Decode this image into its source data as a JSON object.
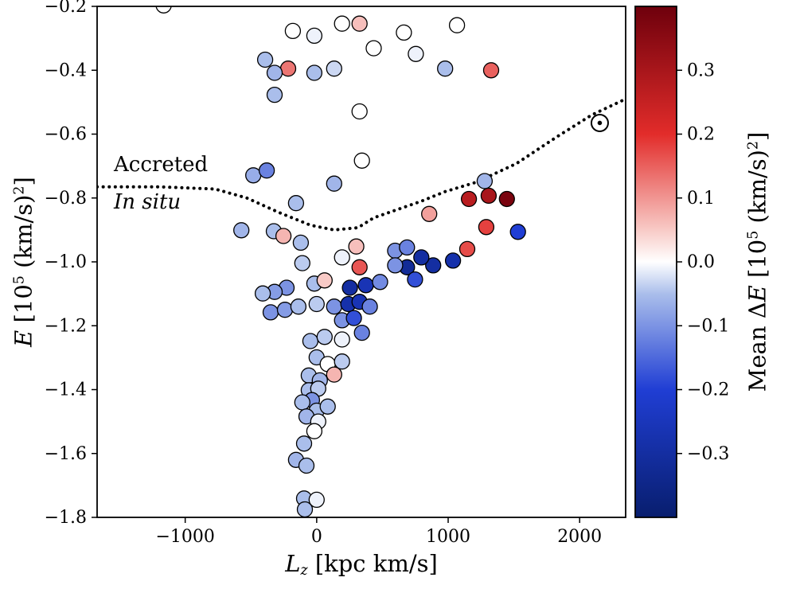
{
  "chart_data": {
    "type": "scatter",
    "annotations": {
      "accreted": "Accreted",
      "in_situ": "In situ"
    },
    "xlabel_plain": "L_z [kpc km/s]",
    "ylabel_plain": "E [10^5 (km/s)^2]",
    "xlabel_parts": [
      {
        "t": "L",
        "style": "italic"
      },
      {
        "t": "z",
        "style": "italic",
        "sub": true
      },
      {
        "t": " [kpc km/s]"
      }
    ],
    "ylabel_parts": [
      {
        "t": "E",
        "style": "italic"
      },
      {
        "t": " [10"
      },
      {
        "t": "5",
        "sup": true
      },
      {
        "t": " (km/s)"
      },
      {
        "t": "2",
        "sup": true
      },
      {
        "t": "]"
      }
    ],
    "xlim": [
      -1670,
      2350
    ],
    "ylim": [
      -1.8,
      -0.2
    ],
    "xticks": [
      -1000,
      0,
      1000,
      2000
    ],
    "yticks": [
      -0.2,
      -0.4,
      -0.6,
      -0.8,
      -1.0,
      -1.2,
      -1.4,
      -1.6,
      -1.8
    ],
    "grid": false,
    "colorbar": {
      "label_plain": "Mean ΔE [10^5 (km/s)^2]",
      "label_parts": [
        {
          "t": "Mean Δ"
        },
        {
          "t": "E",
          "style": "italic"
        },
        {
          "t": " [10"
        },
        {
          "t": "5",
          "sup": true
        },
        {
          "t": " (km/s)"
        },
        {
          "t": "2",
          "sup": true
        },
        {
          "t": "]"
        }
      ],
      "range": [
        -0.4,
        0.4
      ],
      "ticks": [
        0.3,
        0.2,
        0.1,
        0.0,
        -0.1,
        -0.2,
        -0.3
      ],
      "colormap_stops": [
        {
          "v": -0.4,
          "color": "#081e6e"
        },
        {
          "v": -0.2,
          "color": "#203ed4"
        },
        {
          "v": -0.05,
          "color": "#aabeeb"
        },
        {
          "v": 0.0,
          "color": "#ffffff"
        },
        {
          "v": 0.05,
          "color": "#f8cac6"
        },
        {
          "v": 0.2,
          "color": "#e22c2a"
        },
        {
          "v": 0.4,
          "color": "#6e000c"
        }
      ]
    },
    "boundary_line": {
      "style": "dotted",
      "x": [
        -1670,
        -1200,
        -772,
        -531,
        -289,
        -48,
        133,
        314,
        434,
        615,
        796,
        977,
        1218,
        1520,
        1821,
        2092,
        2350
      ],
      "y": [
        -0.765,
        -0.765,
        -0.772,
        -0.8,
        -0.845,
        -0.885,
        -0.9,
        -0.893,
        -0.862,
        -0.836,
        -0.81,
        -0.78,
        -0.75,
        -0.692,
        -0.61,
        -0.54,
        -0.49
      ]
    },
    "sun_marker": {
      "x": 2153,
      "y": -0.565
    },
    "points": [
      [
        -1164,
        -0.197,
        0.0
      ],
      [
        -181,
        -0.277,
        0.0
      ],
      [
        -18,
        -0.292,
        -0.01
      ],
      [
        193,
        -0.254,
        0.0
      ],
      [
        326,
        -0.254,
        0.06
      ],
      [
        434,
        -0.331,
        0.0
      ],
      [
        663,
        -0.282,
        0.0
      ],
      [
        754,
        -0.349,
        -0.01
      ],
      [
        1067,
        -0.259,
        0.0
      ],
      [
        -392,
        -0.367,
        -0.05
      ],
      [
        -217,
        -0.395,
        0.13
      ],
      [
        -320,
        -0.408,
        -0.06
      ],
      [
        -18,
        -0.408,
        -0.05
      ],
      [
        133,
        -0.395,
        -0.03
      ],
      [
        977,
        -0.395,
        -0.05
      ],
      [
        1327,
        -0.4,
        0.15
      ],
      [
        -320,
        -0.477,
        -0.05
      ],
      [
        326,
        -0.529,
        0.0
      ],
      [
        -482,
        -0.729,
        -0.07
      ],
      [
        -380,
        -0.714,
        -0.12
      ],
      [
        344,
        -0.683,
        0.0
      ],
      [
        1278,
        -0.747,
        -0.06
      ],
      [
        1158,
        -0.803,
        0.27
      ],
      [
        1308,
        -0.793,
        0.3
      ],
      [
        1447,
        -0.803,
        0.38
      ],
      [
        856,
        -0.85,
        0.09
      ],
      [
        1531,
        -0.906,
        -0.2
      ],
      [
        1290,
        -0.891,
        0.18
      ],
      [
        1145,
        -0.96,
        0.17
      ],
      [
        -157,
        -0.816,
        -0.05
      ],
      [
        133,
        -0.755,
        -0.06
      ],
      [
        -326,
        -0.904,
        -0.05
      ],
      [
        -253,
        -0.919,
        0.07
      ],
      [
        -573,
        -0.901,
        -0.06
      ],
      [
        886,
        -1.011,
        -0.3
      ],
      [
        1037,
        -0.996,
        -0.28
      ],
      [
        -121,
        -0.94,
        -0.05
      ],
      [
        -109,
        -1.004,
        -0.04
      ],
      [
        193,
        -0.986,
        -0.01
      ],
      [
        326,
        -1.017,
        0.16
      ],
      [
        301,
        -0.952,
        0.06
      ],
      [
        597,
        -0.965,
        -0.1
      ],
      [
        687,
        -0.955,
        -0.12
      ],
      [
        796,
        -0.986,
        -0.3
      ],
      [
        687,
        -1.017,
        -0.32
      ],
      [
        597,
        -1.011,
        -0.1
      ],
      [
        -229,
        -1.081,
        -0.1
      ],
      [
        -320,
        -1.094,
        -0.09
      ],
      [
        -410,
        -1.099,
        -0.05
      ],
      [
        -18,
        -1.068,
        -0.05
      ],
      [
        60,
        -1.058,
        0.05
      ],
      [
        253,
        -1.081,
        -0.3
      ],
      [
        374,
        -1.073,
        -0.26
      ],
      [
        482,
        -1.063,
        -0.11
      ],
      [
        748,
        -1.055,
        -0.18
      ],
      [
        -350,
        -1.158,
        -0.1
      ],
      [
        -241,
        -1.15,
        -0.09
      ],
      [
        -139,
        -1.14,
        -0.05
      ],
      [
        0,
        -1.132,
        -0.04
      ],
      [
        133,
        -1.14,
        -0.1
      ],
      [
        241,
        -1.132,
        -0.28
      ],
      [
        326,
        -1.125,
        -0.26
      ],
      [
        404,
        -1.14,
        -0.12
      ],
      [
        193,
        -1.183,
        -0.1
      ],
      [
        283,
        -1.176,
        -0.18
      ],
      [
        -48,
        -1.248,
        -0.05
      ],
      [
        60,
        -1.235,
        -0.04
      ],
      [
        193,
        -1.243,
        -0.01
      ],
      [
        344,
        -1.222,
        -0.12
      ],
      [
        0,
        -1.299,
        -0.05
      ],
      [
        84,
        -1.32,
        0.0
      ],
      [
        193,
        -1.312,
        -0.04
      ],
      [
        -60,
        -1.356,
        -0.05
      ],
      [
        133,
        -1.353,
        0.07
      ],
      [
        24,
        -1.371,
        -0.06
      ],
      [
        -60,
        -1.402,
        -0.05
      ],
      [
        12,
        -1.397,
        -0.04
      ],
      [
        -36,
        -1.433,
        -0.1
      ],
      [
        -109,
        -1.44,
        -0.05
      ],
      [
        0,
        -1.466,
        -0.05
      ],
      [
        -78,
        -1.484,
        -0.06
      ],
      [
        12,
        -1.5,
        -0.01
      ],
      [
        84,
        -1.453,
        -0.05
      ],
      [
        -18,
        -1.53,
        0.0
      ],
      [
        -96,
        -1.569,
        -0.05
      ],
      [
        -157,
        -1.62,
        -0.06
      ],
      [
        -78,
        -1.638,
        -0.05
      ],
      [
        -96,
        -1.741,
        -0.05
      ],
      [
        0,
        -1.745,
        -0.01
      ],
      [
        -90,
        -1.775,
        -0.05
      ]
    ]
  }
}
